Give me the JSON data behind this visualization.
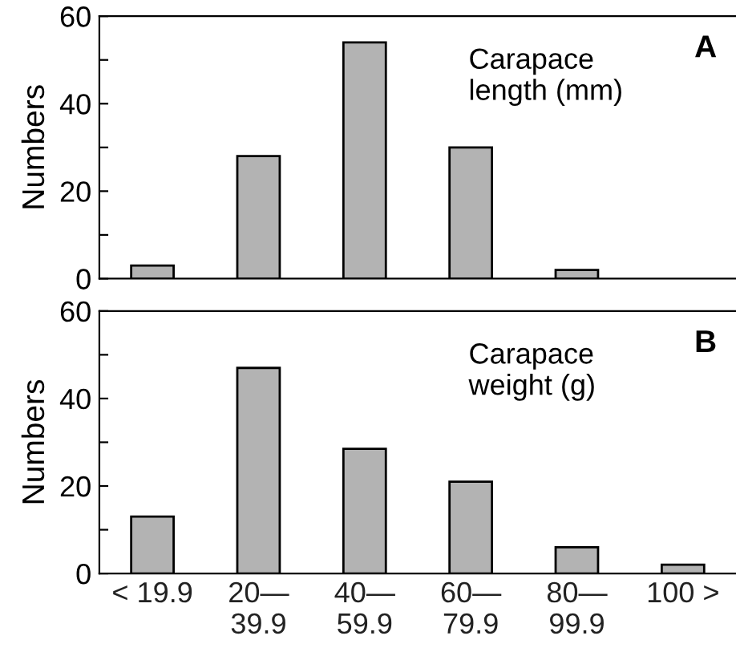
{
  "chart_data": [
    {
      "type": "bar",
      "ylabel": "Numbers",
      "categories": [
        null,
        null,
        null,
        null,
        null,
        null
      ],
      "values": [
        3,
        28,
        54,
        30,
        2,
        null
      ],
      "color": "#b3b3b3",
      "ylim": [
        0,
        60
      ],
      "yticks": [
        0,
        {
          "value": 10,
          "label": null
        },
        20,
        {
          "value": 30,
          "label": null
        },
        40,
        {
          "value": 50,
          "label": null
        },
        60
      ],
      "tick_labels": "y",
      "grid": false,
      "legend": false,
      "annotations": [
        "Carapace\nlength (mm)",
        "A"
      ]
    },
    {
      "type": "bar",
      "ylabel": "Numbers",
      "categories": [
        "< 19.9",
        "20—\n39.9",
        "40—\n59.9",
        "60—\n79.9",
        "80—\n99.9",
        "100 >"
      ],
      "values": [
        13,
        47,
        28.5,
        21,
        6,
        2
      ],
      "color": "#b3b3b3",
      "ylim": [
        0,
        60
      ],
      "yticks": [
        0,
        {
          "value": 10,
          "label": null
        },
        20,
        {
          "value": 30,
          "label": null
        },
        40,
        {
          "value": 50,
          "label": null
        },
        60
      ],
      "grid": false,
      "legend": false,
      "annotations": [
        "Carapace\nweight (g)",
        "B"
      ]
    }
  ]
}
